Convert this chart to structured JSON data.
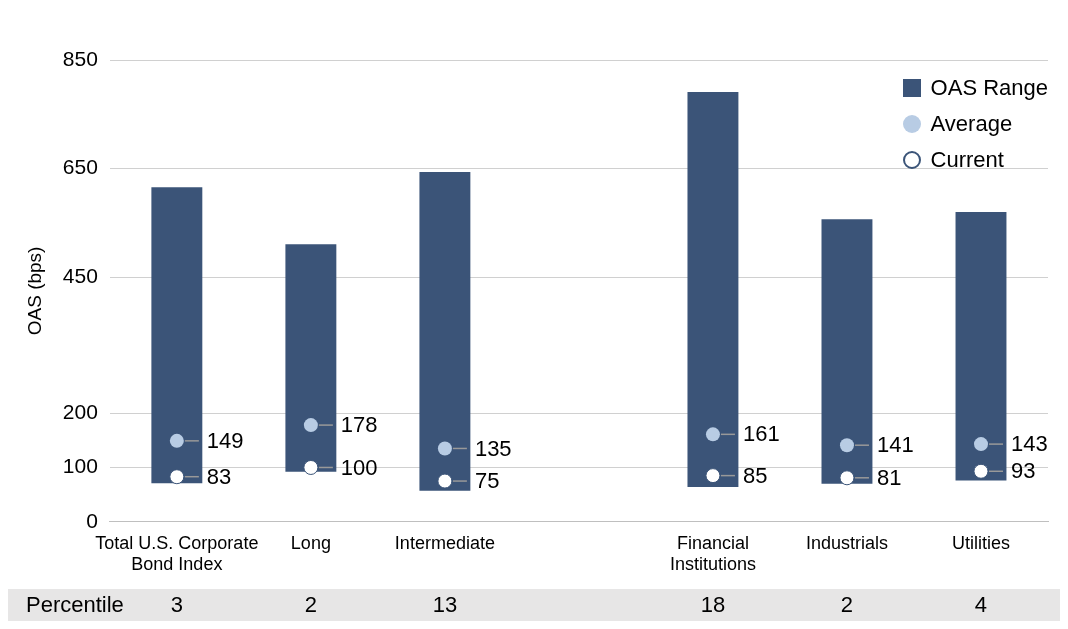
{
  "chart_data": {
    "type": "bar",
    "ylabel": "OAS (bps)",
    "categories": [
      "Total U.S. Corporate Bond Index",
      "Long",
      "Intermediate",
      null,
      "Financial Institutions",
      "Industrials",
      "Utilities"
    ],
    "series": [
      {
        "name": "OAS Range",
        "color": "#3b5478",
        "base": [
          71,
          92,
          57,
          null,
          64,
          70,
          76
        ],
        "values": [
          545,
          419,
          587,
          null,
          727,
          487,
          494
        ]
      },
      {
        "name": "Average",
        "type": "scatter",
        "color": "#b8cce4",
        "values": [
          149,
          178,
          135,
          null,
          161,
          141,
          143
        ],
        "value_labels": [
          "149",
          "178",
          "135",
          null,
          "161",
          "141",
          "143"
        ]
      },
      {
        "name": "Current",
        "type": "scatter",
        "color": "#ffffff",
        "values": [
          83,
          100,
          75,
          null,
          85,
          81,
          93
        ],
        "value_labels": [
          "83",
          "100",
          "75",
          null,
          "85",
          "81",
          "93"
        ]
      }
    ],
    "ylim": [
      0,
      850
    ],
    "yticks": [
      0,
      100,
      200,
      450,
      650,
      850
    ],
    "grid": "y",
    "legend": "top right",
    "marker": "circle",
    "annotations": [
      "Percentile",
      "3",
      "2",
      "13",
      "18",
      "2",
      "4"
    ]
  }
}
